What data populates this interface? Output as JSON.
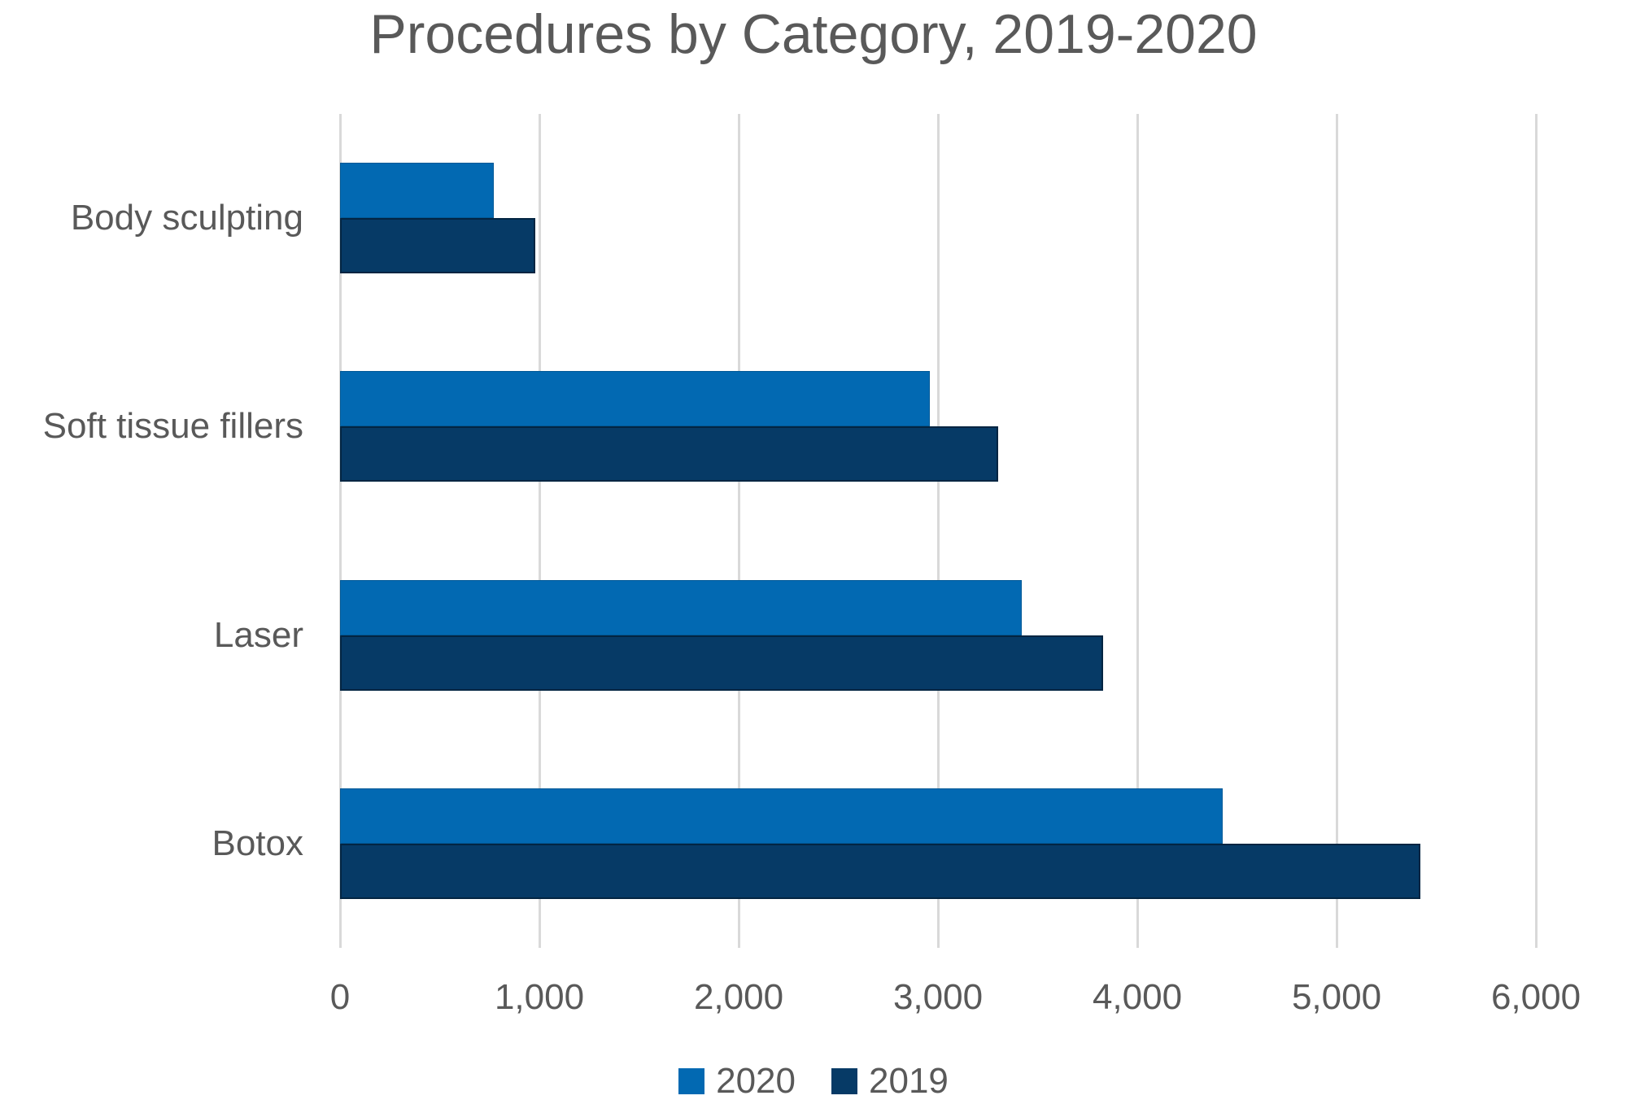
{
  "chart_data": {
    "type": "bar",
    "orientation": "horizontal",
    "title": "Procedures by Category, 2019-2020",
    "categories": [
      "Body sculpting",
      "Soft tissue fillers",
      "Laser",
      "Botox"
    ],
    "series": [
      {
        "name": "2020",
        "color": "#0269B2",
        "values": [
          770,
          2960,
          3420,
          4430
        ]
      },
      {
        "name": "2019",
        "color": "#063A66",
        "values": [
          980,
          3300,
          3830,
          5420
        ]
      }
    ],
    "x_axis": {
      "min": 0,
      "max": 6000,
      "tick_step": 1000,
      "tick_labels": [
        "0",
        "1,000",
        "2,000",
        "3,000",
        "4,000",
        "5,000",
        "6,000"
      ]
    },
    "legend": {
      "position": "bottom",
      "entries": [
        "2020",
        "2019"
      ]
    },
    "grid": "vertical",
    "text_color": "#595959",
    "gridline_color": "#D9D9D9",
    "background_color": "#FFFFFF"
  }
}
